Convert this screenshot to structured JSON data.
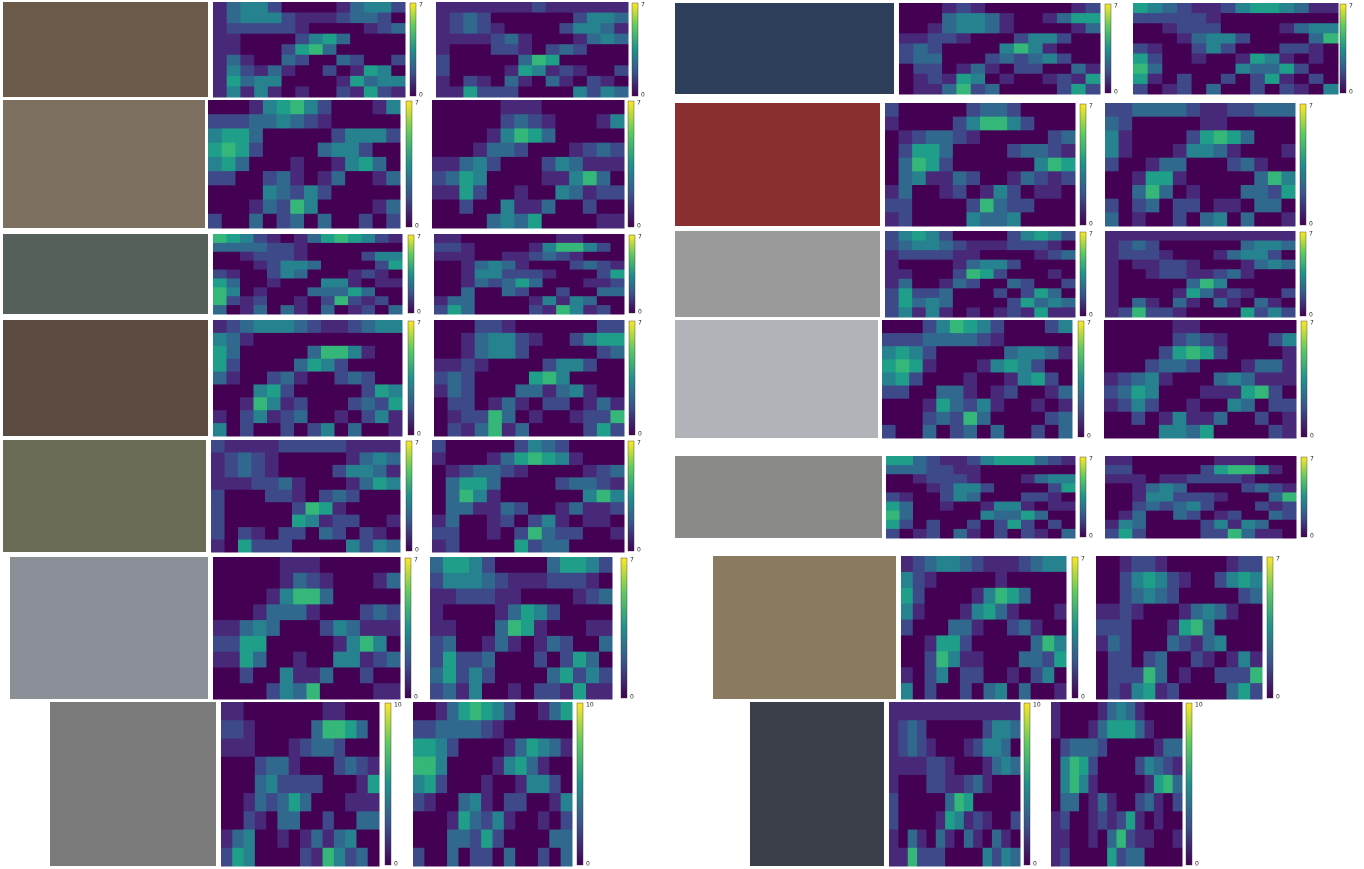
{
  "panels": [
    {
      "heatmaps": [
        {
          "colorbar_max": 7,
          "colorbar_min": 0
        },
        {
          "colorbar_max": 7,
          "colorbar_min": 0
        }
      ]
    },
    {
      "heatmaps": [
        {
          "colorbar_max": 7,
          "colorbar_min": 0
        },
        {
          "colorbar_max": 7,
          "colorbar_min": 0
        }
      ]
    },
    {
      "heatmaps": [
        {
          "colorbar_max": 7,
          "colorbar_min": 0
        },
        {
          "colorbar_max": 7,
          "colorbar_min": 0
        }
      ]
    },
    {
      "heatmaps": [
        {
          "colorbar_max": 7,
          "colorbar_min": 0
        },
        {
          "colorbar_max": 7,
          "colorbar_min": 0
        }
      ]
    },
    {
      "heatmaps": [
        {
          "colorbar_max": 7,
          "colorbar_min": 0
        },
        {
          "colorbar_max": 7,
          "colorbar_min": 0
        }
      ]
    },
    {
      "heatmaps": [
        {
          "colorbar_max": 7,
          "colorbar_min": 0
        },
        {
          "colorbar_max": 7,
          "colorbar_min": 0
        }
      ]
    },
    {
      "heatmaps": [
        {
          "colorbar_max": 10,
          "colorbar_min": 0
        },
        {
          "colorbar_max": 10,
          "colorbar_min": 0
        }
      ]
    },
    {
      "heatmaps": [
        {
          "colorbar_max": 7,
          "colorbar_min": 0
        },
        {
          "colorbar_max": 7,
          "colorbar_min": 0
        }
      ]
    },
    {
      "heatmaps": [
        {
          "colorbar_max": 7,
          "colorbar_min": 0
        },
        {
          "colorbar_max": 7,
          "colorbar_min": 0
        }
      ]
    },
    {
      "heatmaps": [
        {
          "colorbar_max": 7,
          "colorbar_min": 0
        },
        {
          "colorbar_max": 7,
          "colorbar_min": 0
        }
      ]
    },
    {
      "heatmaps": [
        {
          "colorbar_max": 7,
          "colorbar_min": 0
        },
        {
          "colorbar_max": 7,
          "colorbar_min": 0
        }
      ]
    },
    {
      "heatmaps": [
        {
          "colorbar_max": 7,
          "colorbar_min": 0
        },
        {
          "colorbar_max": 7,
          "colorbar_min": 0
        }
      ]
    },
    {
      "heatmaps": [
        {
          "colorbar_max": 7,
          "colorbar_min": 0
        },
        {
          "colorbar_max": 7,
          "colorbar_min": 0
        }
      ]
    },
    {
      "heatmaps": [
        {
          "colorbar_max": 10,
          "colorbar_min": 0
        },
        {
          "colorbar_max": 10,
          "colorbar_min": 0
        }
      ]
    }
  ]
}
